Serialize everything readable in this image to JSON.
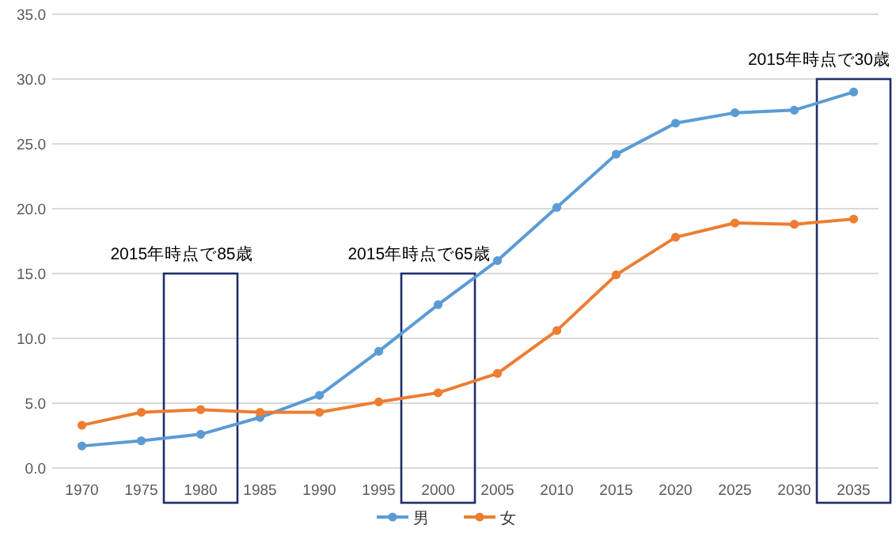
{
  "chart_data": {
    "type": "line",
    "categories": [
      "1970",
      "1975",
      "1980",
      "1985",
      "1990",
      "1995",
      "2000",
      "2005",
      "2010",
      "2015",
      "2020",
      "2025",
      "2030",
      "2035"
    ],
    "series": [
      {
        "name": "男",
        "color": "#5b9bd5",
        "values": [
          1.7,
          2.1,
          2.6,
          3.9,
          5.6,
          9.0,
          12.6,
          16.0,
          20.1,
          24.2,
          26.6,
          27.4,
          27.6,
          29.0
        ]
      },
      {
        "name": "女",
        "color": "#ed7d31",
        "values": [
          3.3,
          4.3,
          4.5,
          4.3,
          4.3,
          5.1,
          5.8,
          7.3,
          10.6,
          14.9,
          17.8,
          18.9,
          18.8,
          19.2
        ]
      }
    ],
    "ylim": [
      0,
      35
    ],
    "yticks": [
      {
        "value": 0,
        "label": "0.0"
      },
      {
        "value": 5,
        "label": "5.0"
      },
      {
        "value": 10,
        "label": "10.0"
      },
      {
        "value": 15,
        "label": "15.0"
      },
      {
        "value": 20,
        "label": "20.0"
      },
      {
        "value": 25,
        "label": "25.0"
      },
      {
        "value": 30,
        "label": "30.0"
      },
      {
        "value": 35,
        "label": "35.0"
      }
    ],
    "grid": "y",
    "legend": "bottom",
    "marker": "circle",
    "line_style": "solid",
    "annotations": [
      "2015年時点で85歳",
      "2015年時点で65歳",
      "2015年時点で30歳"
    ]
  }
}
